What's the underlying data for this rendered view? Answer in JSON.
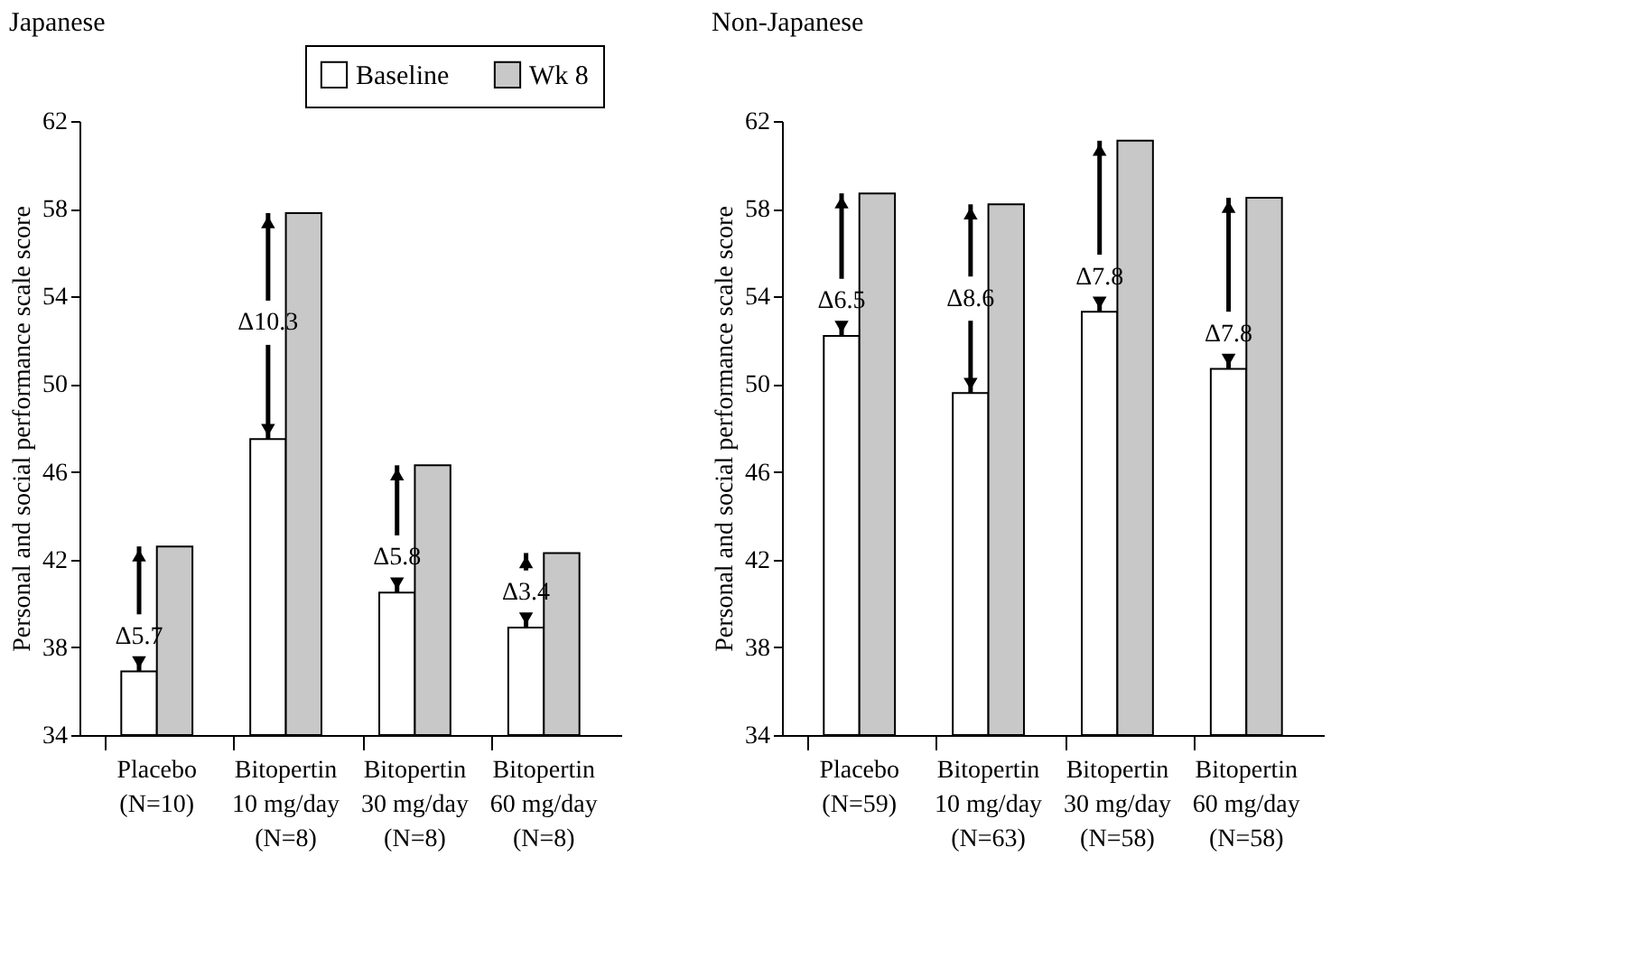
{
  "chart_data": [
    {
      "type": "bar",
      "title": "Japanese",
      "ylabel": "Personal and social performance scale score",
      "categories": [
        "Placebo\n(N=10)",
        "Bitopertin\n10 mg/day\n(N=8)",
        "Bitopertin\n30 mg/day\n(N=8)",
        "Bitopertin\n60 mg/day\n(N=8)"
      ],
      "series": [
        {
          "name": "Baseline",
          "color": "#ffffff",
          "values": [
            36.9,
            47.5,
            40.5,
            38.9
          ]
        },
        {
          "name": "Wk 8",
          "color": "#c8c8c8",
          "values": [
            42.6,
            57.8,
            46.3,
            42.3
          ]
        }
      ],
      "ylim": [
        34,
        62
      ],
      "yticks": [
        34,
        38,
        42,
        46,
        50,
        54,
        58,
        62
      ],
      "legend": "top right",
      "annotations": [
        {
          "text": "Δ5.7",
          "x": "Placebo\n(N=10)",
          "y": 36.9
        },
        {
          "text": "Δ10.3",
          "x": "Bitopertin\n10 mg/day\n(N=8)",
          "y": 52.8
        },
        {
          "text": "Δ5.8",
          "x": "Bitopertin\n30 mg/day\n(N=8)",
          "y": 40.5
        },
        {
          "text": "Δ3.4",
          "x": "Bitopertin\n60 mg/day\n(N=8)",
          "y": 38.9
        }
      ]
    },
    {
      "type": "bar",
      "title": "Non-Japanese",
      "ylabel": "Personal and social performance scale score",
      "categories": [
        "Placebo\n(N=59)",
        "Bitopertin\n10 mg/day\n(N=63)",
        "Bitopertin\n30 mg/day\n(N=58)",
        "Bitopertin\n60 mg/day\n(N=58)"
      ],
      "series": [
        {
          "name": "Baseline",
          "color": "#ffffff",
          "values": [
            52.2,
            49.6,
            53.3,
            50.7
          ]
        },
        {
          "name": "Wk 8",
          "color": "#c8c8c8",
          "values": [
            58.7,
            58.2,
            61.1,
            58.5
          ]
        }
      ],
      "ylim": [
        34,
        62
      ],
      "yticks": [
        34,
        38,
        42,
        46,
        50,
        54,
        58,
        62
      ],
      "legend": "top right",
      "annotations": [
        {
          "text": "Δ6.5",
          "x": "Placebo\n(N=59)",
          "y": 52.2
        },
        {
          "text": "Δ8.6",
          "x": "Bitopertin\n10 mg/day\n(N=63)",
          "y": 53.9
        },
        {
          "text": "Δ7.8",
          "x": "Bitopertin\n30 mg/day\n(N=58)",
          "y": 53.3
        },
        {
          "text": "Δ7.8",
          "x": "Bitopertin\n60 mg/day\n(N=58)",
          "y": 50.7
        }
      ]
    }
  ]
}
